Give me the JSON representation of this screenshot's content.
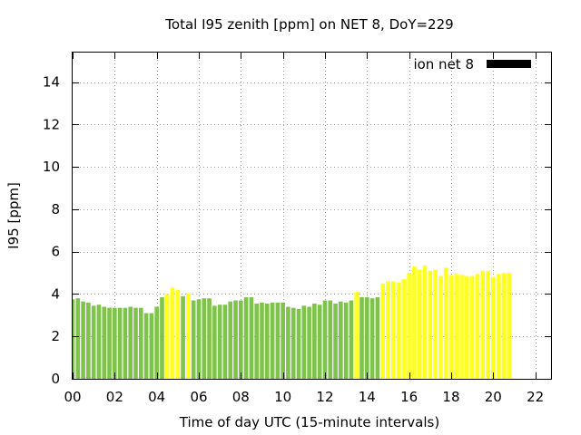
{
  "chart_data": {
    "type": "bar",
    "title": "Total I95 zenith [ppm] on NET 8, DoY=229",
    "xlabel": "Time of day UTC (15-minute intervals)",
    "ylabel": "I95 [ppm]",
    "legend": {
      "label": "ion net 8",
      "position": "top-right",
      "swatch_color": "#000000"
    },
    "grid": true,
    "xlim": [
      0,
      22.75
    ],
    "ylim": [
      0,
      15.4
    ],
    "x_ticks": [
      "00",
      "02",
      "04",
      "06",
      "08",
      "10",
      "12",
      "14",
      "16",
      "18",
      "20",
      "22"
    ],
    "y_ticks": [
      "0",
      "2",
      "4",
      "6",
      "8",
      "10",
      "12",
      "14"
    ],
    "colors": {
      "below_threshold": "#7ec44a",
      "above_threshold": "#ffff22"
    },
    "series": [
      {
        "interval_hours": 0.25,
        "values": [
          3.75,
          3.8,
          3.65,
          3.6,
          3.45,
          3.5,
          3.4,
          3.35,
          3.35,
          3.35,
          3.35,
          3.4,
          3.35,
          3.35,
          3.1,
          3.1,
          3.4,
          3.85,
          4.0,
          4.3,
          4.2,
          3.9,
          4.05,
          3.7,
          3.75,
          3.8,
          3.8,
          3.45,
          3.5,
          3.5,
          3.65,
          3.7,
          3.7,
          3.85,
          3.85,
          3.55,
          3.6,
          3.55,
          3.6,
          3.6,
          3.6,
          3.4,
          3.35,
          3.3,
          3.45,
          3.4,
          3.55,
          3.5,
          3.7,
          3.7,
          3.55,
          3.65,
          3.6,
          3.7,
          4.1,
          3.85,
          3.85,
          3.8,
          3.85,
          4.5,
          4.6,
          4.6,
          4.55,
          4.7,
          5.0,
          5.3,
          5.15,
          5.35,
          5.1,
          5.15,
          4.85,
          5.25,
          4.9,
          4.95,
          4.9,
          4.85,
          4.85,
          4.95,
          5.1,
          5.1,
          4.8,
          4.95,
          5.0,
          5.0
        ],
        "above_threshold": [
          false,
          false,
          false,
          false,
          false,
          false,
          false,
          false,
          false,
          false,
          false,
          false,
          false,
          false,
          false,
          false,
          false,
          false,
          true,
          true,
          true,
          false,
          true,
          false,
          false,
          false,
          false,
          false,
          false,
          false,
          false,
          false,
          false,
          false,
          false,
          false,
          false,
          false,
          false,
          false,
          false,
          false,
          false,
          false,
          false,
          false,
          false,
          false,
          false,
          false,
          false,
          false,
          false,
          false,
          true,
          false,
          false,
          false,
          false,
          true,
          true,
          true,
          true,
          true,
          true,
          true,
          true,
          true,
          true,
          true,
          true,
          true,
          true,
          true,
          true,
          true,
          true,
          true,
          true,
          true,
          true,
          true,
          true,
          true
        ]
      }
    ]
  }
}
